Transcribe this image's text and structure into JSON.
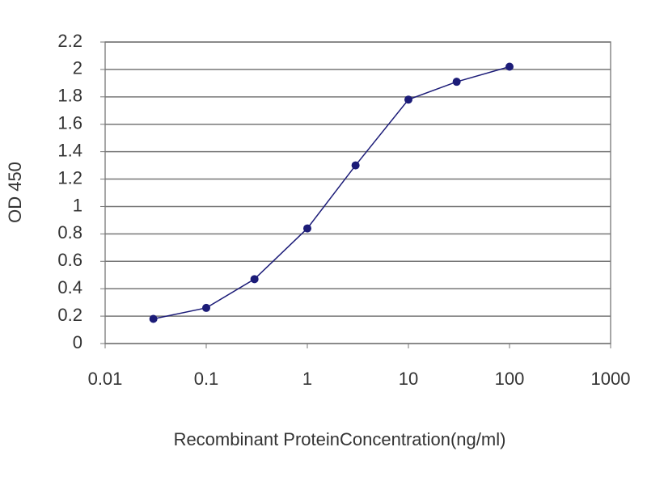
{
  "chart_data": {
    "type": "line",
    "x_label": "Recombinant ProteinConcentration(ng/ml)",
    "y_label": "OD 450",
    "x": [
      0.03,
      0.1,
      0.3,
      1,
      3,
      10,
      30,
      100
    ],
    "series": [
      {
        "name": "OD 450",
        "color": "#1c1c78",
        "values": [
          0.18,
          0.26,
          0.47,
          0.84,
          1.3,
          1.78,
          1.91,
          2.02
        ]
      }
    ],
    "xlim": [
      0.01,
      1000
    ],
    "xticks": [
      0.01,
      0.1,
      1,
      10,
      100,
      1000
    ],
    "x_log": true,
    "ylim": [
      0,
      2.2
    ],
    "yticks": [
      0,
      0.2,
      0.4,
      0.6,
      0.8,
      1,
      1.2,
      1.4,
      1.6,
      1.8,
      2,
      2.2
    ],
    "grid": true
  }
}
